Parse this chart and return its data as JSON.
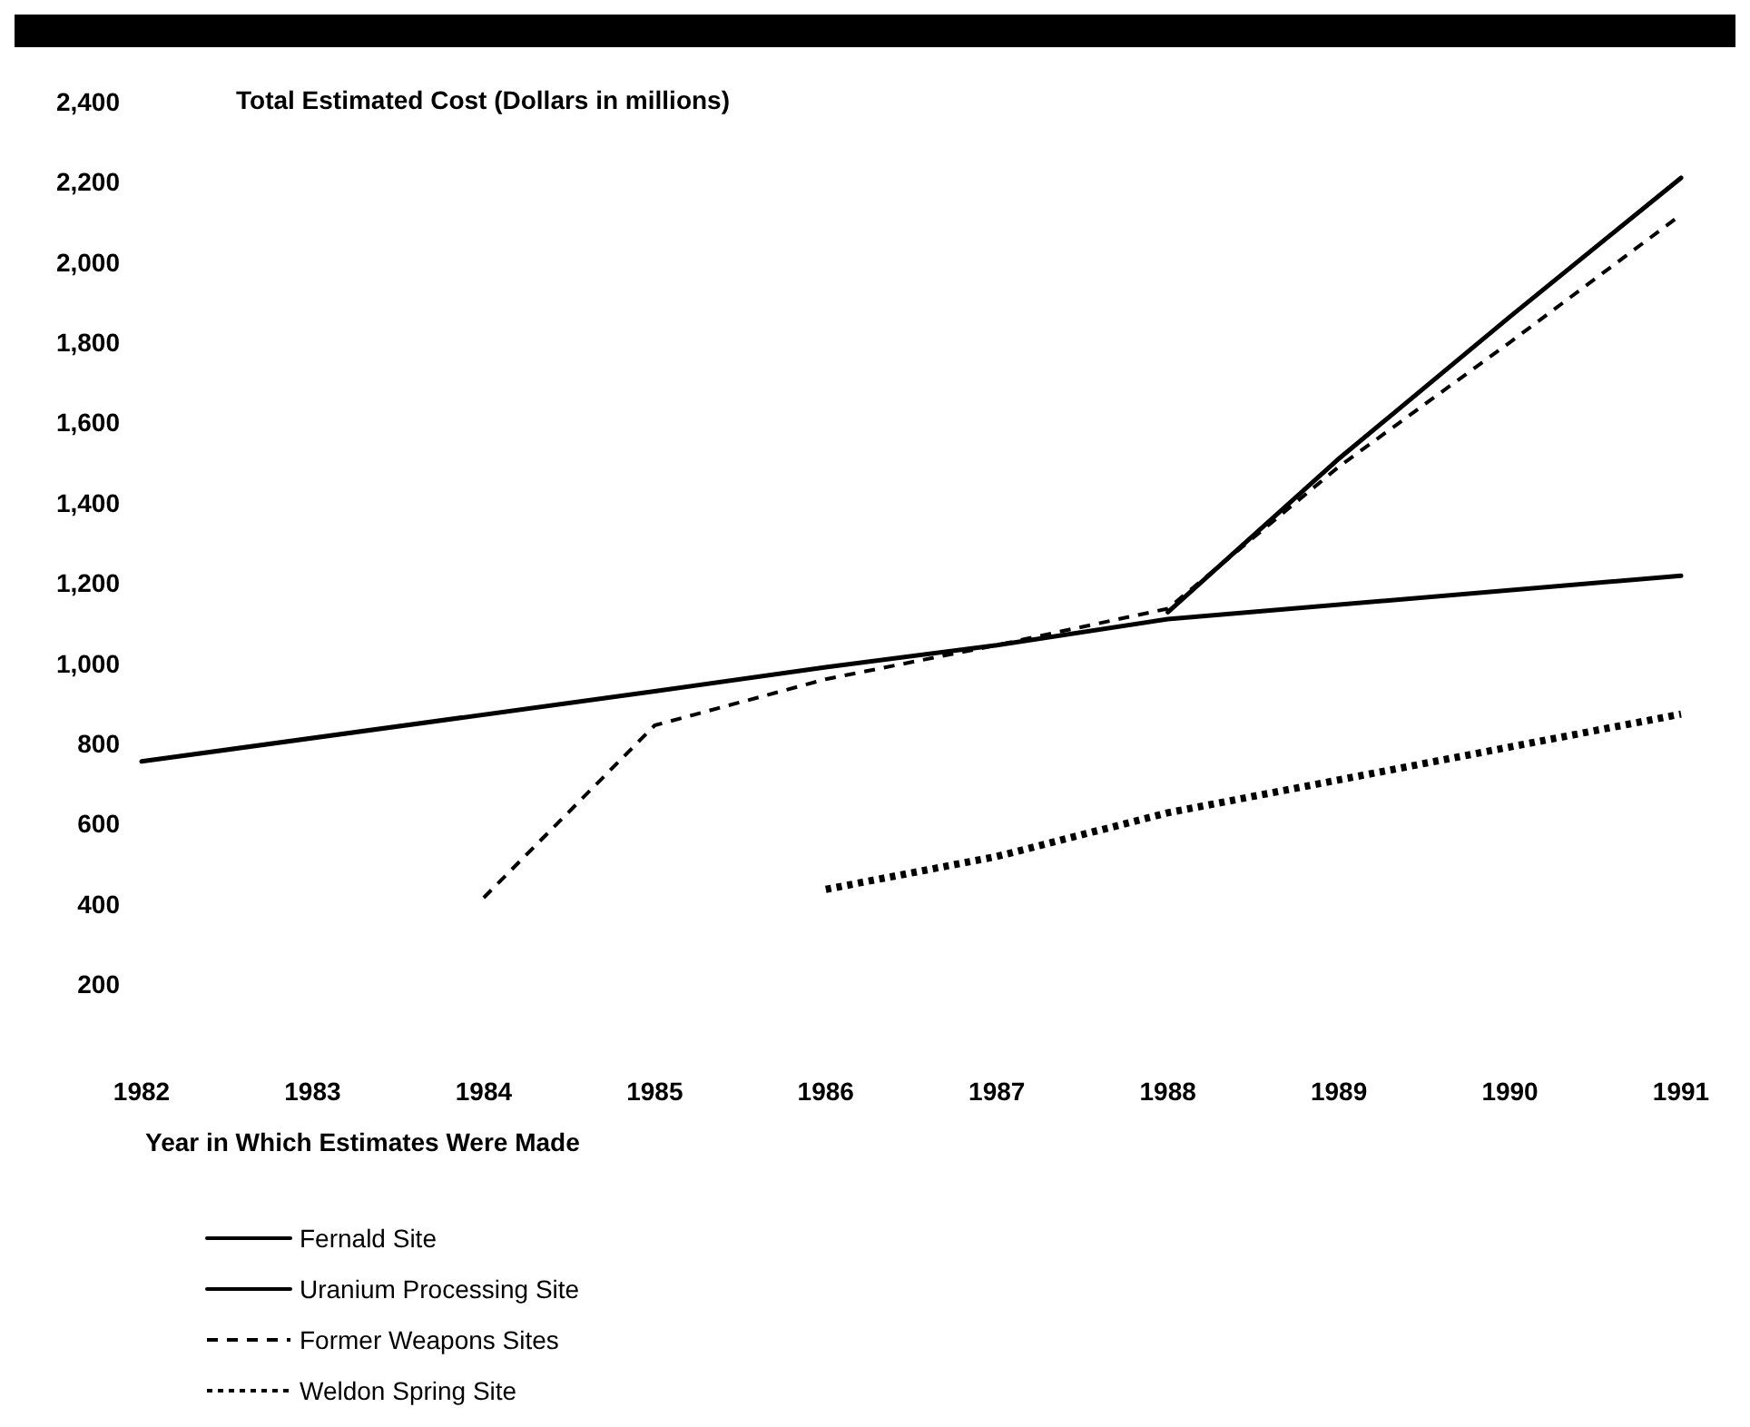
{
  "chart_data": {
    "type": "line",
    "ylabel": "Total Estimated Cost (Dollars in millions)",
    "xlabel": "Year in Which Estimates Were Made",
    "xlim": [
      1982,
      1991
    ],
    "xticks": [
      1982,
      1983,
      1984,
      1985,
      1986,
      1987,
      1988,
      1989,
      1990,
      1991
    ],
    "ylim": [
      200,
      2400
    ],
    "yticks": [
      {
        "value": 200,
        "label": "200"
      },
      {
        "value": 400,
        "label": "400"
      },
      {
        "value": 600,
        "label": "600"
      },
      {
        "value": 800,
        "label": "800"
      },
      {
        "value": 1000,
        "label": "1,000"
      },
      {
        "value": 1200,
        "label": "1,200"
      },
      {
        "value": 1400,
        "label": "1,400"
      },
      {
        "value": 1600,
        "label": "1,600"
      },
      {
        "value": 1800,
        "label": "1,800"
      },
      {
        "value": 2000,
        "label": "2,000"
      },
      {
        "value": 2200,
        "label": "2,200"
      },
      {
        "value": 2400,
        "label": "2,400"
      }
    ],
    "grid": false,
    "legend": "bottom",
    "marker": "none",
    "series": [
      {
        "name": "Fernald Site",
        "color": "#000000",
        "line_style": "solid",
        "x": [
          1988,
          1989,
          1990,
          1991
        ],
        "values": [
          1127,
          1510,
          1864,
          2210
        ]
      },
      {
        "name": "Uranium Processing Site",
        "color": "#000000",
        "line_style": "solid",
        "x": [
          1982,
          1985,
          1986,
          1987,
          1988,
          1991
        ],
        "values": [
          755,
          930,
          990,
          1045,
          1110,
          1218
        ]
      },
      {
        "name": "Former Weapons Sites",
        "color": "#000000",
        "line_style": "dashed",
        "x": [
          1984,
          1985,
          1986,
          1987,
          1988,
          1989,
          1990,
          1991
        ],
        "values": [
          415,
          845,
          960,
          1045,
          1136,
          1490,
          1800,
          2118
        ]
      },
      {
        "name": "Weldon Spring Site",
        "color": "#000000",
        "line_style": "dotted",
        "x": [
          1986,
          1987,
          1988,
          1989,
          1990,
          1991
        ],
        "values": [
          436,
          518,
          627,
          709,
          791,
          873
        ]
      }
    ]
  }
}
